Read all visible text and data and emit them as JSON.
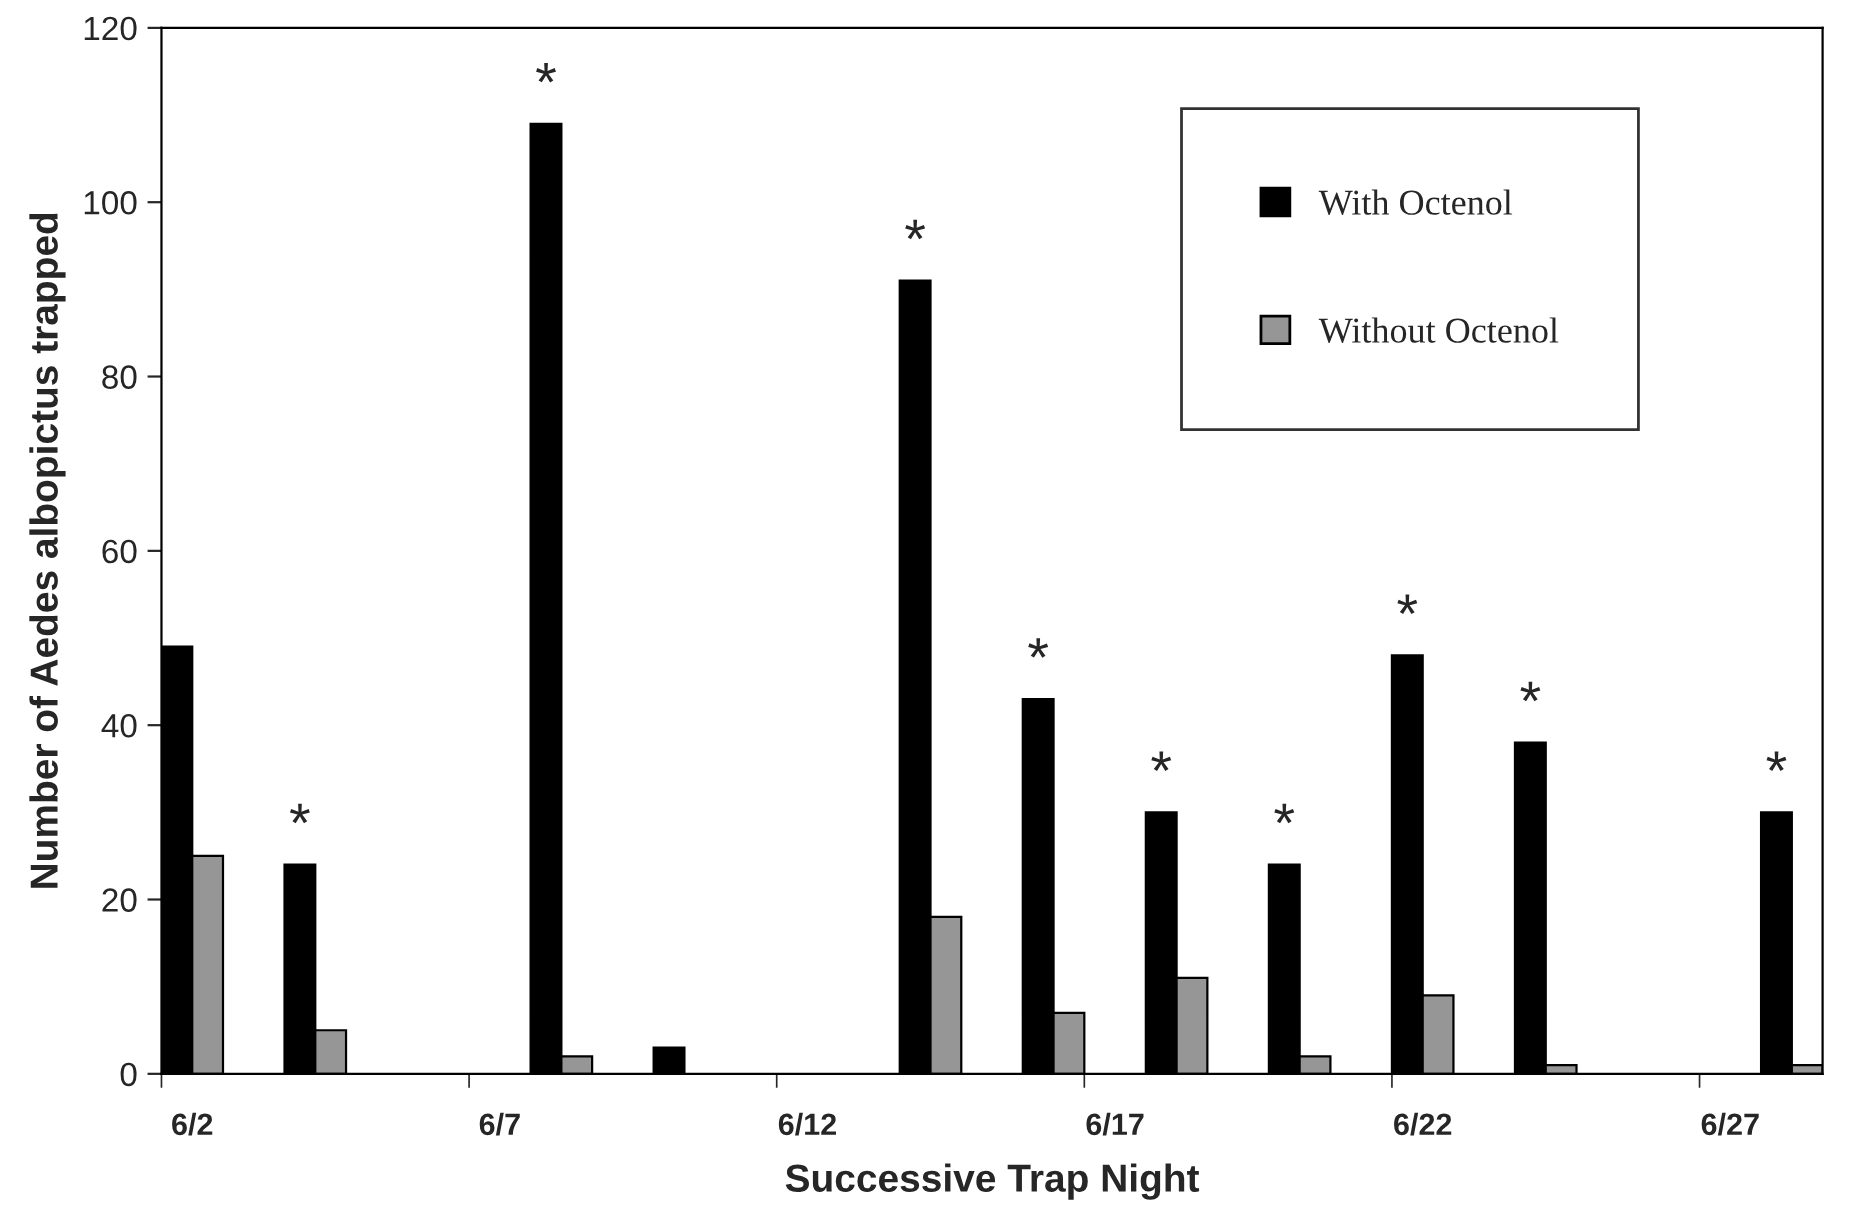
{
  "chart_data": {
    "type": "bar",
    "xlabel": "Successive Trap Night",
    "ylabel": "Number of Aedes albopictus trapped",
    "categories": [
      "6/2",
      null,
      null,
      null,
      null,
      "6/7",
      null,
      null,
      null,
      null,
      "6/12",
      null,
      null,
      null,
      null,
      "6/17",
      null,
      null,
      null,
      null,
      "6/22",
      null,
      null,
      null,
      null,
      "6/27",
      null
    ],
    "series": [
      {
        "name": "With Octenol",
        "color": "#000000",
        "values": [
          49,
          null,
          24,
          null,
          null,
          null,
          109,
          null,
          3,
          null,
          null,
          null,
          91,
          null,
          43,
          null,
          30,
          null,
          24,
          null,
          48,
          null,
          38,
          null,
          null,
          null,
          30
        ],
        "value_labels": [
          null,
          null,
          "*",
          null,
          null,
          null,
          "*",
          null,
          null,
          null,
          null,
          null,
          "*",
          null,
          "*",
          null,
          "*",
          null,
          "*",
          null,
          "*",
          null,
          "*",
          null,
          null,
          null,
          "*"
        ]
      },
      {
        "name": "Without Octenol",
        "color": "#969696",
        "values": [
          25,
          null,
          5,
          null,
          null,
          null,
          2,
          null,
          null,
          null,
          null,
          null,
          18,
          null,
          7,
          null,
          11,
          null,
          2,
          null,
          9,
          null,
          1,
          null,
          null,
          null,
          1
        ]
      }
    ],
    "ylim": [
      0,
      120
    ],
    "yticks": [
      0,
      20,
      40,
      60,
      80,
      100,
      120
    ],
    "grid": false,
    "legend": "top right"
  }
}
